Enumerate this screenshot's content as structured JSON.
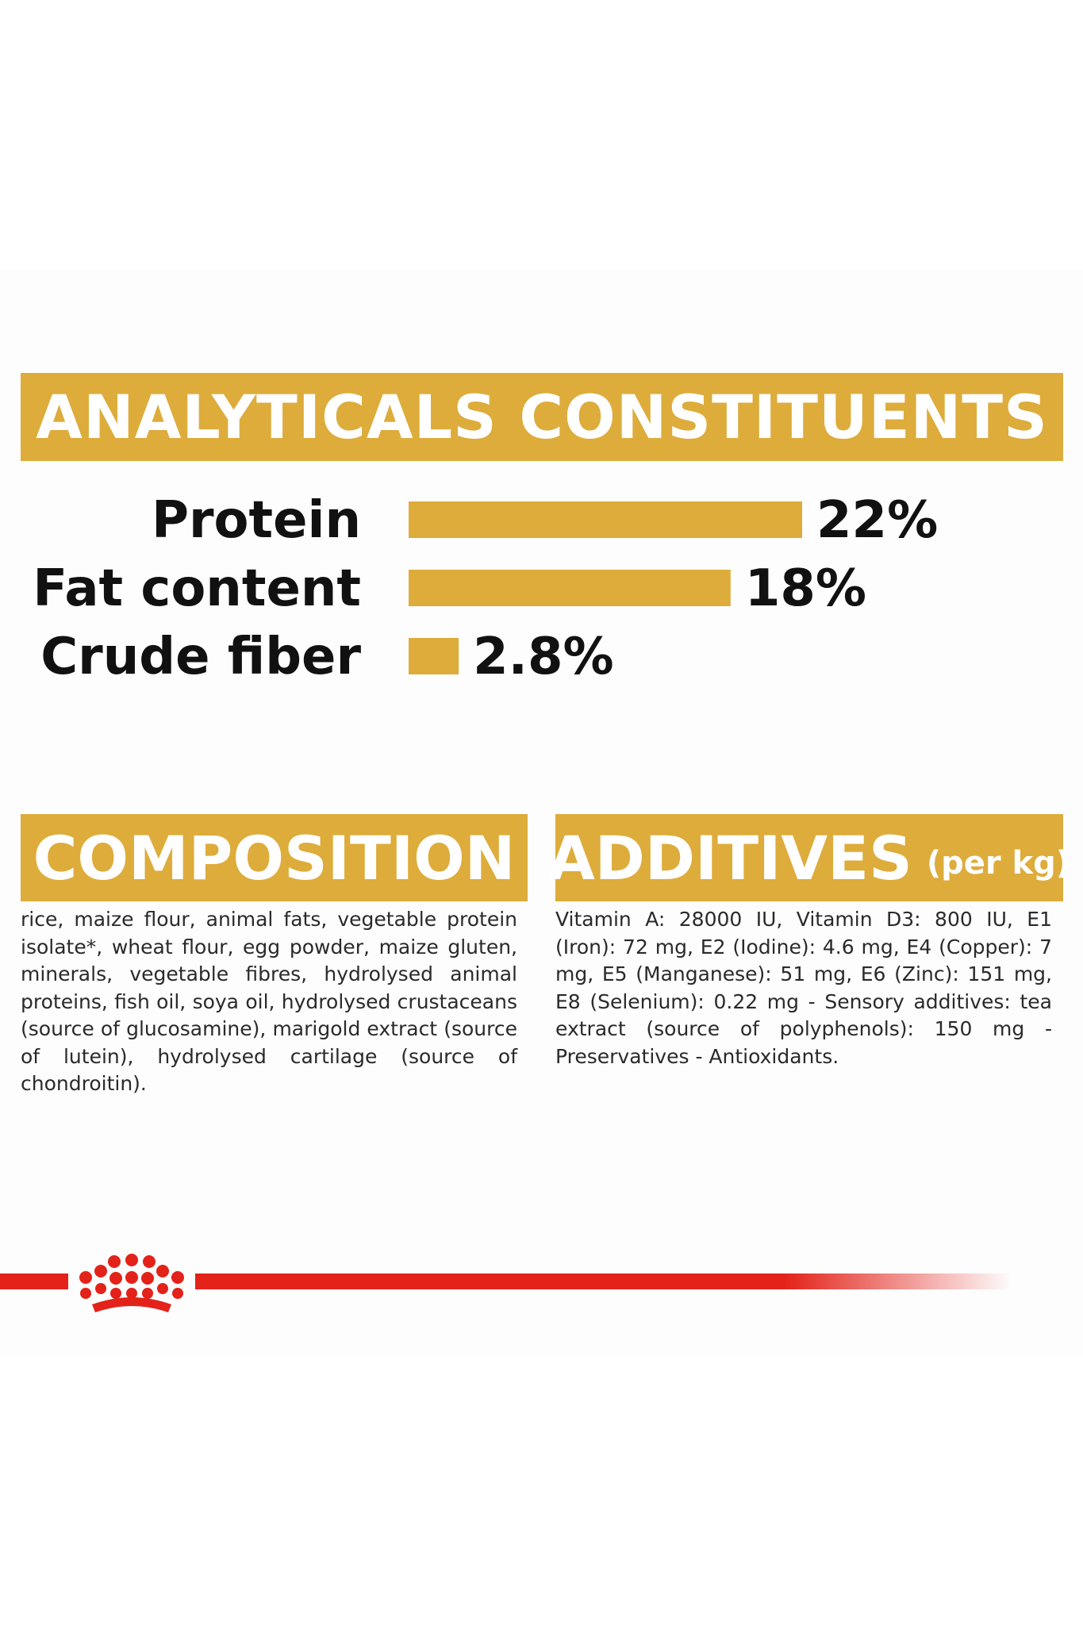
{
  "headings": {
    "analytical": "ANALYTICALS CONSTITUENTS",
    "composition": "COMPOSITION",
    "additives": "ADDITIVES",
    "additives_unit": "(per kg)"
  },
  "chart_data": {
    "type": "bar",
    "orientation": "horizontal",
    "categories": [
      "Protein",
      "Fat content",
      "Crude fiber"
    ],
    "values": [
      22,
      18,
      2.8
    ],
    "value_labels": [
      "22%",
      "18%",
      "2.8%"
    ],
    "unit": "%",
    "title": "ANALYTICALS CONSTITUENTS",
    "xlim": [
      0,
      22
    ],
    "grid": false,
    "legend": "none",
    "colors": {
      "bar": "#ddac3b"
    }
  },
  "composition_text": "rice, maize flour, animal fats, vegetable protein isolate*, wheat flour, egg powder, maize gluten, minerals, vegetable fibres, hydrolysed animal proteins, fish oil, soya oil, hydrolysed crustaceans (source of glucosamine), marigold extract (source of lutein), hydrolysed cartilage (source of chondroitin).",
  "additives_text": "Vitamin A: 28000 IU, Vitamin D3: 800 IU, E1 (Iron): 72 mg, E2 (Iodine): 4.6 mg, E4 (Copper): 7 mg, E5 (Manganese): 51 mg, E6 (Zinc): 151 mg, E8 (Selenium): 0.22 mg - Sensory additives: tea extract (source of polyphenols): 150 mg - Preservatives - Antioxidants.",
  "brand": {
    "logo_icon": "crown-icon",
    "color": "#e32219"
  }
}
